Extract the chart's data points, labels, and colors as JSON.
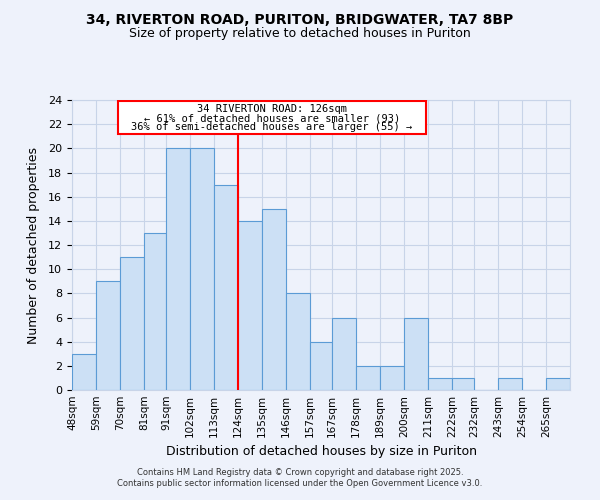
{
  "title_line1": "34, RIVERTON ROAD, PURITON, BRIDGWATER, TA7 8BP",
  "title_line2": "Size of property relative to detached houses in Puriton",
  "xlabel": "Distribution of detached houses by size in Puriton",
  "ylabel": "Number of detached properties",
  "bar_edges": [
    48,
    59,
    70,
    81,
    91,
    102,
    113,
    124,
    135,
    146,
    157,
    167,
    178,
    189,
    200,
    211,
    222,
    232,
    243,
    254,
    265
  ],
  "bar_heights": [
    3,
    9,
    11,
    13,
    20,
    20,
    17,
    14,
    15,
    8,
    4,
    6,
    2,
    2,
    6,
    1,
    1,
    0,
    1,
    0,
    1
  ],
  "bar_color": "#cce0f5",
  "bar_edge_color": "#5b9bd5",
  "red_line_x": 124,
  "ylim": [
    0,
    24
  ],
  "yticks": [
    0,
    2,
    4,
    6,
    8,
    10,
    12,
    14,
    16,
    18,
    20,
    22,
    24
  ],
  "xtick_labels": [
    "48sqm",
    "59sqm",
    "70sqm",
    "81sqm",
    "91sqm",
    "102sqm",
    "113sqm",
    "124sqm",
    "135sqm",
    "146sqm",
    "157sqm",
    "167sqm",
    "178sqm",
    "189sqm",
    "200sqm",
    "211sqm",
    "222sqm",
    "232sqm",
    "243sqm",
    "254sqm",
    "265sqm"
  ],
  "annotation_title": "34 RIVERTON ROAD: 126sqm",
  "annotation_line1": "← 61% of detached houses are smaller (93)",
  "annotation_line2": "36% of semi-detached houses are larger (55) →",
  "background_color": "#eef2fb",
  "grid_color": "#c8d4e8",
  "footer_line1": "Contains HM Land Registry data © Crown copyright and database right 2025.",
  "footer_line2": "Contains public sector information licensed under the Open Government Licence v3.0."
}
